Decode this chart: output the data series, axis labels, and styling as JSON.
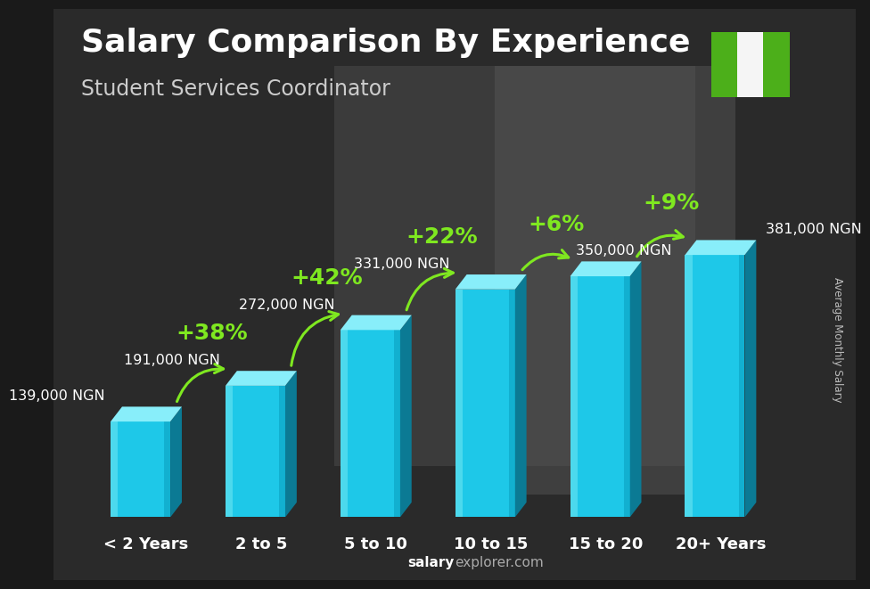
{
  "title": "Salary Comparison By Experience",
  "subtitle": "Student Services Coordinator",
  "categories": [
    "< 2 Years",
    "2 to 5",
    "5 to 10",
    "10 to 15",
    "15 to 20",
    "20+ Years"
  ],
  "values": [
    139000,
    191000,
    272000,
    331000,
    350000,
    381000
  ],
  "labels": [
    "139,000 NGN",
    "191,000 NGN",
    "272,000 NGN",
    "331,000 NGN",
    "350,000 NGN",
    "381,000 NGN"
  ],
  "pct_changes": [
    "+38%",
    "+42%",
    "+22%",
    "+6%",
    "+9%"
  ],
  "bar_front": "#1EC8E8",
  "bar_left_highlight": "#55DDEE",
  "bar_top": "#88EEFA",
  "bar_side": "#0B7A94",
  "bar_dark_side": "#095F74",
  "ylabel": "Average Monthly Salary",
  "footer_salary": "salary",
  "footer_rest": "explorer.com",
  "title_fontsize": 26,
  "subtitle_fontsize": 17,
  "label_fontsize": 11.5,
  "pct_fontsize": 18,
  "cat_fontsize": 13,
  "arrow_color": "#7FE820",
  "pct_color": "#7FE820",
  "value_color": "#ffffff",
  "flag_green": "#4CAF1A",
  "flag_white": "#f5f5f5",
  "bg_color": "#1a1a1a"
}
